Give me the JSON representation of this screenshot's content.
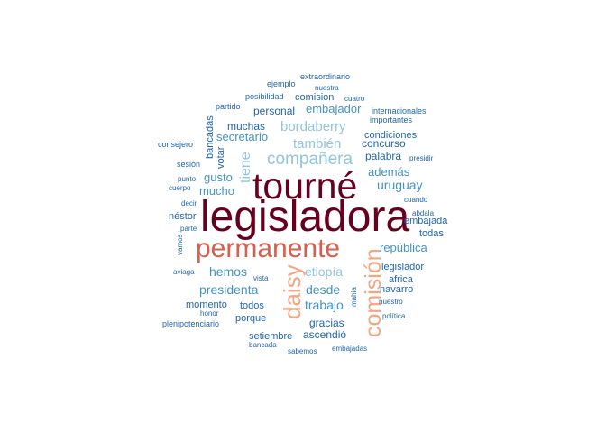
{
  "colors": {
    "darkest": "#67001f",
    "dark_red": "#b2182b",
    "orange_red": "#d6604d",
    "peach": "#f4a582",
    "light_blue": "#92c5de",
    "mid_blue": "#4393c3",
    "dark_blue": "#2166ac"
  },
  "words": [
    {
      "text": "tourné",
      "color": "#67001f"
    },
    {
      "text": "legisladora",
      "color": "#67001f"
    },
    {
      "text": "permanente",
      "color": "#d6604d"
    },
    {
      "text": "comisión",
      "color": "#f4a582"
    },
    {
      "text": "daisy",
      "color": "#f4a582"
    },
    {
      "text": "compañera",
      "color": "#92c5de"
    },
    {
      "text": "bordaberry",
      "color": "#92c5de"
    },
    {
      "text": "también",
      "color": "#92c5de"
    },
    {
      "text": "tiene",
      "color": "#92c5de"
    },
    {
      "text": "etiopía",
      "color": "#92c5de"
    },
    {
      "text": "república",
      "color": "#4393c3"
    },
    {
      "text": "hemos",
      "color": "#4393c3"
    },
    {
      "text": "desde",
      "color": "#4393c3"
    },
    {
      "text": "presidenta",
      "color": "#4393c3"
    },
    {
      "text": "trabajo",
      "color": "#4393c3"
    },
    {
      "text": "uruguay",
      "color": "#4393c3"
    },
    {
      "text": "además",
      "color": "#4393c3"
    },
    {
      "text": "mucho",
      "color": "#4393c3"
    },
    {
      "text": "gusto",
      "color": "#4393c3"
    },
    {
      "text": "secretario",
      "color": "#4393c3"
    },
    {
      "text": "embajador",
      "color": "#4393c3"
    },
    {
      "text": "palabra",
      "color": "#2166ac"
    },
    {
      "text": "concurso",
      "color": "#2166ac"
    },
    {
      "text": "condiciones",
      "color": "#2166ac"
    },
    {
      "text": "muchas",
      "color": "#2166ac"
    },
    {
      "text": "personal",
      "color": "#2166ac"
    },
    {
      "text": "comision",
      "color": "#2166ac"
    },
    {
      "text": "votar",
      "color": "#2166ac"
    },
    {
      "text": "bancadas",
      "color": "#2166ac"
    },
    {
      "text": "néstor",
      "color": "#2166ac"
    },
    {
      "text": "embajada",
      "color": "#2166ac"
    },
    {
      "text": "todas",
      "color": "#2166ac"
    },
    {
      "text": "legislador",
      "color": "#2166ac"
    },
    {
      "text": "africa",
      "color": "#2166ac"
    },
    {
      "text": "navarro",
      "color": "#2166ac"
    },
    {
      "text": "gracias",
      "color": "#2166ac"
    },
    {
      "text": "ascendió",
      "color": "#2166ac"
    },
    {
      "text": "setiembre",
      "color": "#2166ac"
    },
    {
      "text": "porque",
      "color": "#2166ac"
    },
    {
      "text": "todos",
      "color": "#2166ac"
    },
    {
      "text": "momento",
      "color": "#2166ac"
    },
    {
      "text": "extraordinario",
      "color": "#2166ac"
    },
    {
      "text": "ejemplo",
      "color": "#2166ac"
    },
    {
      "text": "nuestra",
      "color": "#2166ac"
    },
    {
      "text": "posibilidad",
      "color": "#2166ac"
    },
    {
      "text": "cuatro",
      "color": "#2166ac"
    },
    {
      "text": "partido",
      "color": "#2166ac"
    },
    {
      "text": "internacionales",
      "color": "#2166ac"
    },
    {
      "text": "importantes",
      "color": "#2166ac"
    },
    {
      "text": "consejero",
      "color": "#2166ac"
    },
    {
      "text": "sesión",
      "color": "#2166ac"
    },
    {
      "text": "presidir",
      "color": "#2166ac"
    },
    {
      "text": "punto",
      "color": "#2166ac"
    },
    {
      "text": "cuerpo",
      "color": "#2166ac"
    },
    {
      "text": "cuando",
      "color": "#2166ac"
    },
    {
      "text": "decir",
      "color": "#2166ac"
    },
    {
      "text": "abdala",
      "color": "#2166ac"
    },
    {
      "text": "parte",
      "color": "#2166ac"
    },
    {
      "text": "vamos",
      "color": "#2166ac"
    },
    {
      "text": "aviaga",
      "color": "#2166ac"
    },
    {
      "text": "vista",
      "color": "#2166ac"
    },
    {
      "text": "mahia",
      "color": "#2166ac"
    },
    {
      "text": "honor",
      "color": "#2166ac"
    },
    {
      "text": "nuestro",
      "color": "#2166ac"
    },
    {
      "text": "política",
      "color": "#2166ac"
    },
    {
      "text": "plenipotenciario",
      "color": "#2166ac"
    },
    {
      "text": "bancada",
      "color": "#2166ac"
    },
    {
      "text": "sabemos",
      "color": "#2166ac"
    },
    {
      "text": "embajadas",
      "color": "#2166ac"
    }
  ]
}
